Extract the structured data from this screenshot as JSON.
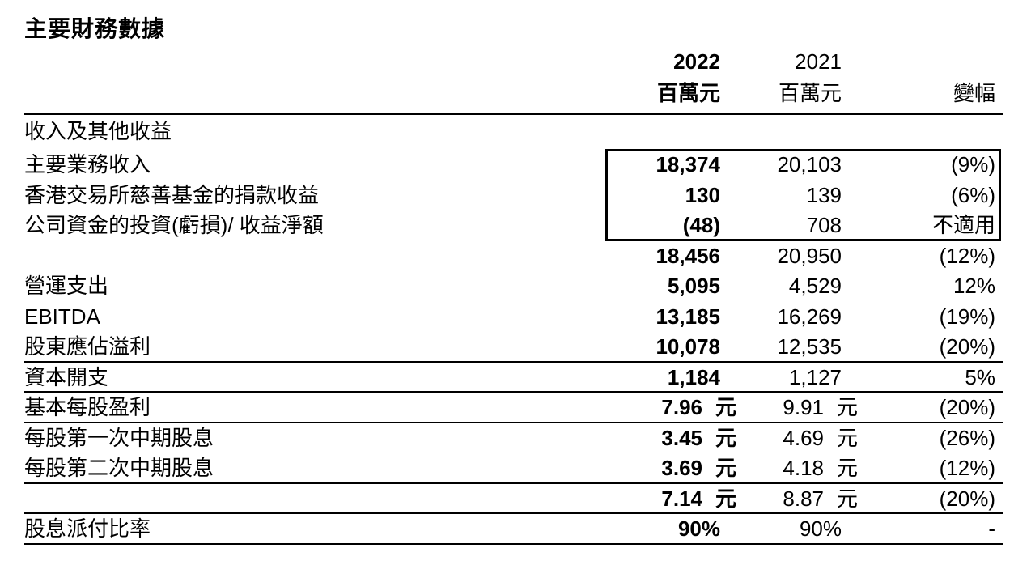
{
  "title": "主要財務數據",
  "table": {
    "header": {
      "year_2022": "2022",
      "unit_2022": "百萬元",
      "year_2021": "2021",
      "unit_2021": "百萬元",
      "change": "變幅"
    },
    "rows": [
      {
        "label": "收入及其他收益",
        "type": "section",
        "v2022": "",
        "u2022": "",
        "v2021": "",
        "u2021": "",
        "change": ""
      },
      {
        "label": "主要業務收入",
        "v2022": "18,374",
        "u2022": "",
        "v2021": "20,103",
        "u2021": "",
        "change": "(9%)",
        "boxed": true
      },
      {
        "label": "香港交易所慈善基金的捐款收益",
        "v2022": "130",
        "u2022": "",
        "v2021": "139",
        "u2021": "",
        "change": "(6%)",
        "boxed": true
      },
      {
        "label": "公司資金的投資(虧損)/ 收益淨額",
        "v2022": "(48)",
        "u2022": "",
        "v2021": "708",
        "u2021": "",
        "change": "不適用",
        "boxed": true
      },
      {
        "label": "",
        "v2022": "18,456",
        "u2022": "",
        "v2021": "20,950",
        "u2021": "",
        "change": "(12%)"
      },
      {
        "label": "營運支出",
        "v2022": "5,095",
        "u2022": "",
        "v2021": "4,529",
        "u2021": "",
        "change": "12%"
      },
      {
        "label": "EBITDA",
        "v2022": "13,185",
        "u2022": "",
        "v2021": "16,269",
        "u2021": "",
        "change": "(19%)"
      },
      {
        "label": "股東應佔溢利",
        "v2022": "10,078",
        "u2022": "",
        "v2021": "12,535",
        "u2021": "",
        "change": "(20%)",
        "rule_below": true
      },
      {
        "label": "資本開支",
        "v2022": "1,184",
        "u2022": "",
        "v2021": "1,127",
        "u2021": "",
        "change": "5%",
        "rule_below": true
      },
      {
        "label": "基本每股盈利",
        "v2022": "7.96",
        "u2022": "元",
        "v2021": "9.91",
        "u2021": "元",
        "change": "(20%)",
        "rule_below": true
      },
      {
        "label": "每股第一次中期股息",
        "v2022": "3.45",
        "u2022": "元",
        "v2021": "4.69",
        "u2021": "元",
        "change": "(26%)"
      },
      {
        "label": "每股第二次中期股息",
        "v2022": "3.69",
        "u2022": "元",
        "v2021": "4.18",
        "u2021": "元",
        "change": "(12%)",
        "rule_below": true
      },
      {
        "label": "",
        "v2022": "7.14",
        "u2022": "元",
        "v2021": "8.87",
        "u2021": "元",
        "change": "(20%)",
        "rule_below": true
      },
      {
        "label": "股息派付比率",
        "v2022": "90%",
        "u2022": "",
        "v2021": "90%",
        "u2021": "",
        "change": "-",
        "rule_below": true
      }
    ]
  }
}
